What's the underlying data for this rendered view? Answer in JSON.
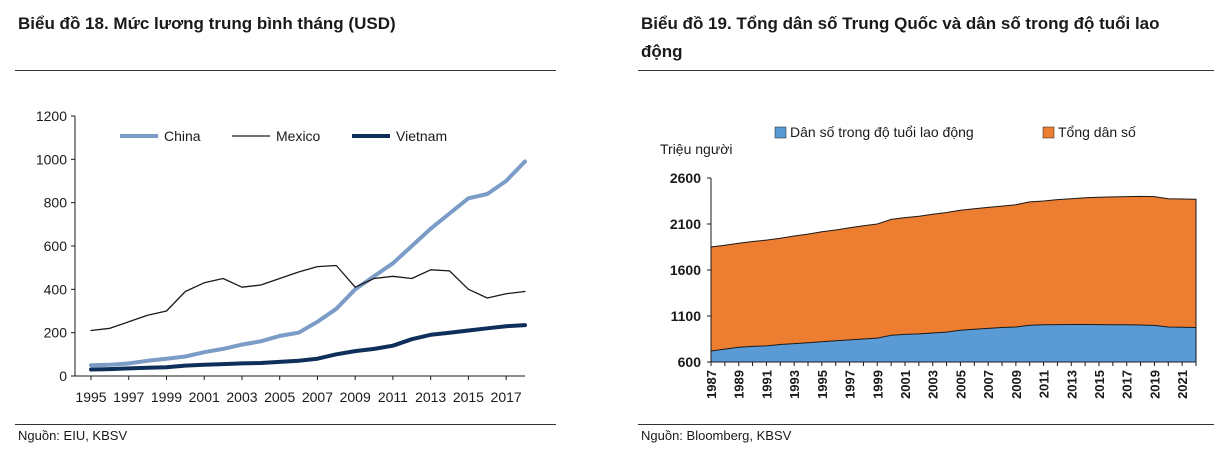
{
  "left": {
    "title": "Biểu đồ 18. Mức lương trung bình tháng (USD)",
    "source": "Nguồn: EIU, KBSV",
    "chart_data": {
      "type": "line",
      "x": [
        1995,
        1996,
        1997,
        1998,
        1999,
        2000,
        2001,
        2002,
        2003,
        2004,
        2005,
        2006,
        2007,
        2008,
        2009,
        2010,
        2011,
        2012,
        2013,
        2014,
        2015,
        2016,
        2017,
        2018
      ],
      "x_tick_labels": [
        "1995",
        "1997",
        "1999",
        "2001",
        "2003",
        "2005",
        "2007",
        "2009",
        "2011",
        "2013",
        "2015",
        "2017"
      ],
      "y_ticks": [
        0,
        200,
        400,
        600,
        800,
        1000,
        1200
      ],
      "ylim": [
        0,
        1200
      ],
      "series": [
        {
          "name": "China",
          "color": "#7a9cc6",
          "values": [
            50,
            52,
            58,
            70,
            80,
            90,
            110,
            125,
            145,
            160,
            185,
            200,
            250,
            310,
            400,
            460,
            520,
            600,
            680,
            750,
            820,
            840,
            900,
            990
          ]
        },
        {
          "name": "Mexico",
          "color": "#1a1a1a",
          "values": [
            210,
            220,
            250,
            280,
            300,
            390,
            430,
            450,
            410,
            420,
            450,
            480,
            505,
            510,
            410,
            450,
            460,
            450,
            490,
            485,
            400,
            360,
            380,
            390
          ]
        },
        {
          "name": "Vietnam",
          "color": "#0e2f5a",
          "values": [
            30,
            32,
            35,
            38,
            40,
            48,
            52,
            55,
            58,
            60,
            65,
            70,
            80,
            100,
            115,
            125,
            140,
            170,
            190,
            200,
            210,
            220,
            230,
            235
          ]
        }
      ],
      "legend_position": "top"
    }
  },
  "right": {
    "title": "Biểu đồ 19. Tổng dân số Trung Quốc và dân số trong độ tuổi lao động",
    "source": "Nguồn: Bloomberg, KBSV",
    "chart_data": {
      "type": "area",
      "ylabel": "Triệu người",
      "x": [
        1987,
        1988,
        1989,
        1990,
        1991,
        1992,
        1993,
        1994,
        1995,
        1996,
        1997,
        1998,
        1999,
        2000,
        2001,
        2002,
        2003,
        2004,
        2005,
        2006,
        2007,
        2008,
        2009,
        2010,
        2011,
        2012,
        2013,
        2014,
        2015,
        2016,
        2017,
        2018,
        2019,
        2020,
        2021,
        2022
      ],
      "x_tick_labels": [
        "1987",
        "1989",
        "1991",
        "1993",
        "1995",
        "1997",
        "1999",
        "2001",
        "2003",
        "2005",
        "2007",
        "2009",
        "2011",
        "2013",
        "2015",
        "2017",
        "2019",
        "2021"
      ],
      "y_ticks": [
        600,
        1100,
        1600,
        2100,
        2600
      ],
      "ylim": [
        600,
        2600
      ],
      "series": [
        {
          "name": "Dân số trong độ tuổi lao động",
          "color": "#5b9bd5",
          "values": [
            720,
            740,
            760,
            770,
            775,
            790,
            800,
            810,
            820,
            830,
            840,
            850,
            860,
            890,
            900,
            905,
            915,
            925,
            945,
            955,
            965,
            975,
            980,
            1000,
            1005,
            1007,
            1008,
            1008,
            1006,
            1005,
            1004,
            1002,
            998,
            980,
            978,
            975
          ]
        },
        {
          "name": "Tổng dân số",
          "color": "#ed7d31",
          "values": [
            1850,
            1870,
            1890,
            1910,
            1925,
            1945,
            1970,
            1990,
            2015,
            2035,
            2060,
            2080,
            2100,
            2150,
            2170,
            2185,
            2205,
            2225,
            2250,
            2265,
            2280,
            2295,
            2310,
            2340,
            2350,
            2365,
            2375,
            2385,
            2390,
            2395,
            2398,
            2400,
            2398,
            2375,
            2372,
            2370
          ]
        }
      ],
      "legend_position": "top"
    }
  }
}
